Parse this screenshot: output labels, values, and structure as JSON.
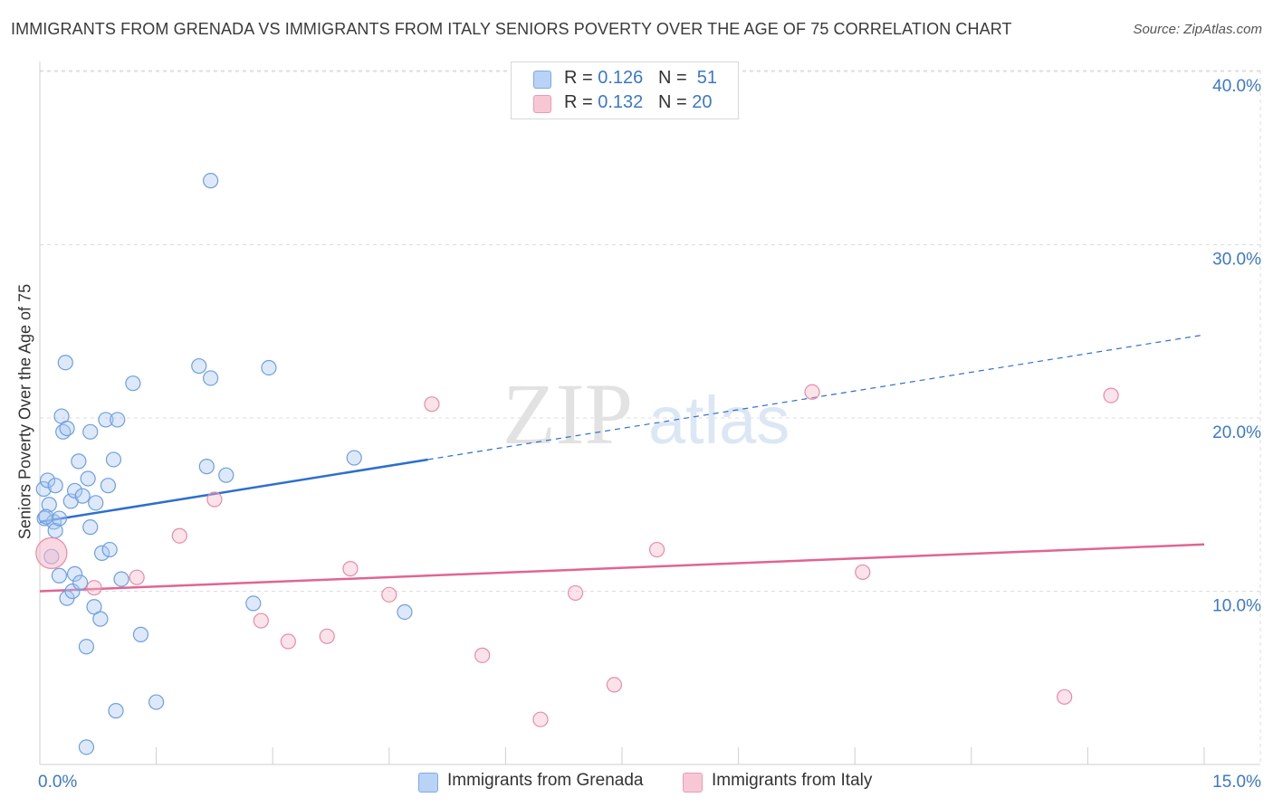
{
  "title": "IMMIGRANTS FROM GRENADA VS IMMIGRANTS FROM ITALY SENIORS POVERTY OVER THE AGE OF 75 CORRELATION CHART",
  "source": "Source: ZipAtlas.com",
  "watermark": {
    "zip": "ZIP",
    "atlas": "atlas"
  },
  "legend": {
    "r_label": "R = ",
    "n_label": "N = ",
    "rows": [
      {
        "r": "0.126",
        "n": "51",
        "color": "#a9c9f3"
      },
      {
        "r": "0.132",
        "n": "20",
        "color": "#f6b8cb"
      }
    ]
  },
  "chart_data": {
    "type": "scatter",
    "title": "IMMIGRANTS FROM GRENADA VS IMMIGRANTS FROM ITALY SENIORS POVERTY OVER THE AGE OF 75 CORRELATION CHART",
    "xlabel": "",
    "ylabel": "Seniors Poverty Over the Age of 75",
    "xlim": [
      0,
      15
    ],
    "ylim": [
      0,
      40
    ],
    "x_tick_labels": [
      "0.0%",
      "15.0%"
    ],
    "y_ticks": [
      10,
      20,
      30,
      40
    ],
    "y_tick_labels": [
      "10.0%",
      "20.0%",
      "30.0%",
      "40.0%"
    ],
    "grid": true,
    "series": [
      {
        "name": "Immigrants from Grenada",
        "color": "#a9c9f3",
        "stroke": "#6d9fe0",
        "trend": {
          "x0": 0,
          "y0": 14.0,
          "x1": 5.0,
          "y1": 17.6,
          "dash_x1": 15,
          "dash_y1": 24.8,
          "color": "#2d6fcf"
        },
        "points": [
          [
            0.05,
            15.9
          ],
          [
            0.06,
            14.2
          ],
          [
            0.1,
            16.4
          ],
          [
            0.12,
            15.0
          ],
          [
            0.15,
            12.0
          ],
          [
            0.18,
            14.0
          ],
          [
            0.2,
            13.5
          ],
          [
            0.2,
            16.1
          ],
          [
            0.25,
            14.2
          ],
          [
            0.25,
            10.9
          ],
          [
            0.28,
            20.1
          ],
          [
            0.3,
            19.2
          ],
          [
            0.33,
            23.2
          ],
          [
            0.35,
            19.4
          ],
          [
            0.35,
            9.6
          ],
          [
            0.4,
            15.2
          ],
          [
            0.42,
            10.0
          ],
          [
            0.45,
            15.8
          ],
          [
            0.45,
            11.0
          ],
          [
            0.5,
            17.5
          ],
          [
            0.52,
            10.5
          ],
          [
            0.55,
            15.5
          ],
          [
            0.6,
            6.8
          ],
          [
            0.62,
            16.5
          ],
          [
            0.65,
            13.7
          ],
          [
            0.65,
            19.2
          ],
          [
            0.7,
            9.1
          ],
          [
            0.72,
            15.1
          ],
          [
            0.78,
            8.4
          ],
          [
            0.8,
            12.2
          ],
          [
            0.85,
            19.9
          ],
          [
            0.88,
            16.1
          ],
          [
            0.9,
            12.4
          ],
          [
            0.95,
            17.6
          ],
          [
            0.98,
            3.1
          ],
          [
            1.05,
            10.7
          ],
          [
            1.2,
            22.0
          ],
          [
            1.3,
            7.5
          ],
          [
            1.5,
            3.6
          ],
          [
            2.05,
            23.0
          ],
          [
            2.15,
            17.2
          ],
          [
            2.2,
            22.3
          ],
          [
            2.2,
            33.7
          ],
          [
            2.4,
            16.7
          ],
          [
            2.75,
            9.3
          ],
          [
            2.95,
            22.9
          ],
          [
            4.05,
            17.7
          ],
          [
            4.7,
            8.8
          ],
          [
            0.6,
            1.0
          ],
          [
            1.0,
            19.9
          ],
          [
            0.08,
            14.3
          ]
        ]
      },
      {
        "name": "Immigrants from Italy",
        "color": "#f6b8cb",
        "stroke": "#e98aa7",
        "trend": {
          "x0": 0,
          "y0": 10.0,
          "x1": 15,
          "y1": 12.7,
          "color": "#e06592"
        },
        "points": [
          [
            0.15,
            12.2
          ],
          [
            0.7,
            10.2
          ],
          [
            1.25,
            10.8
          ],
          [
            1.8,
            13.2
          ],
          [
            2.25,
            15.3
          ],
          [
            2.85,
            8.3
          ],
          [
            3.2,
            7.1
          ],
          [
            3.7,
            7.4
          ],
          [
            4.0,
            11.3
          ],
          [
            4.5,
            9.8
          ],
          [
            5.05,
            20.8
          ],
          [
            5.7,
            6.3
          ],
          [
            6.45,
            2.6
          ],
          [
            6.9,
            9.9
          ],
          [
            7.4,
            4.6
          ],
          [
            7.95,
            12.4
          ],
          [
            9.95,
            21.5
          ],
          [
            10.6,
            11.1
          ],
          [
            13.2,
            3.9
          ],
          [
            13.8,
            21.3
          ]
        ]
      }
    ]
  }
}
